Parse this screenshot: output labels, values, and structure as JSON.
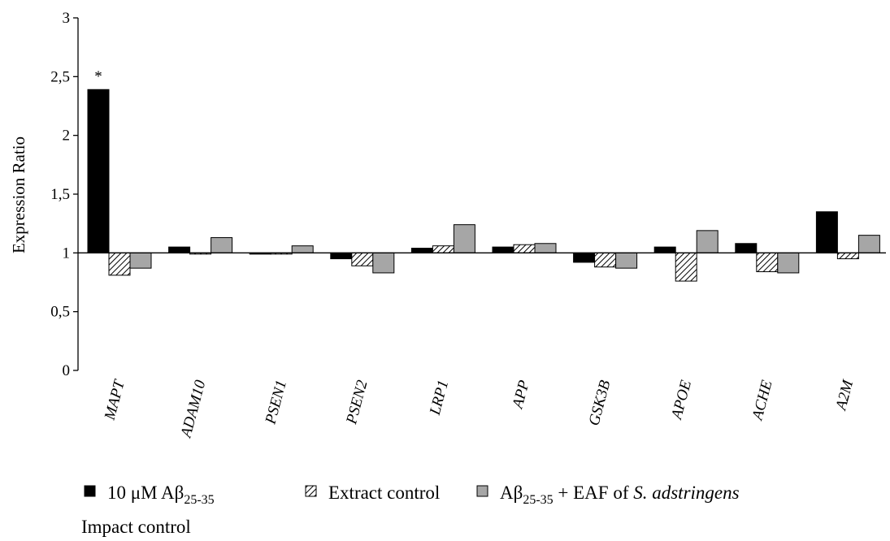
{
  "chart_data": {
    "type": "bar",
    "ylabel": "Expression Ratio",
    "ylim": [
      0,
      3
    ],
    "yticks": [
      "0",
      "0,5",
      "1",
      "1,5",
      "2",
      "2,5",
      "3"
    ],
    "baseline": 1,
    "categories": [
      "MAPT",
      "ADAM10",
      "PSEN1",
      "PSEN2",
      "LRP1",
      "APP",
      "GSK3B",
      "APOE",
      "ACHE",
      "A2M"
    ],
    "series": [
      {
        "name": "10 μM Aβ25-35",
        "pattern": "solid",
        "color": "#000000",
        "values": [
          2.39,
          1.05,
          0.99,
          0.95,
          1.04,
          1.05,
          0.92,
          1.05,
          1.08,
          1.35
        ]
      },
      {
        "name": "Extract control",
        "pattern": "hatch",
        "color": "#ffffff",
        "values": [
          0.81,
          0.99,
          0.99,
          0.89,
          1.06,
          1.07,
          0.88,
          0.76,
          0.84,
          0.95
        ]
      },
      {
        "name": "Aβ25-35 + EAF of S. adstringens",
        "pattern": "solid",
        "color": "#a6a6a6",
        "values": [
          0.87,
          1.13,
          1.06,
          0.83,
          1.24,
          1.08,
          0.87,
          1.19,
          0.83,
          1.15
        ]
      }
    ],
    "annotations": [
      {
        "category": "MAPT",
        "text": "*"
      }
    ],
    "legend": {
      "placement": "bottom",
      "items": [
        {
          "prefix": "10 μM Aβ",
          "sub": "25-35",
          "suffix": ""
        },
        {
          "prefix": "Extract control",
          "sub": "",
          "suffix": ""
        },
        {
          "prefix": "Aβ",
          "sub": "25-35",
          "suffix": " + EAF of ",
          "italic": "S. adstringens"
        }
      ],
      "extra_line": "Impact control"
    }
  }
}
